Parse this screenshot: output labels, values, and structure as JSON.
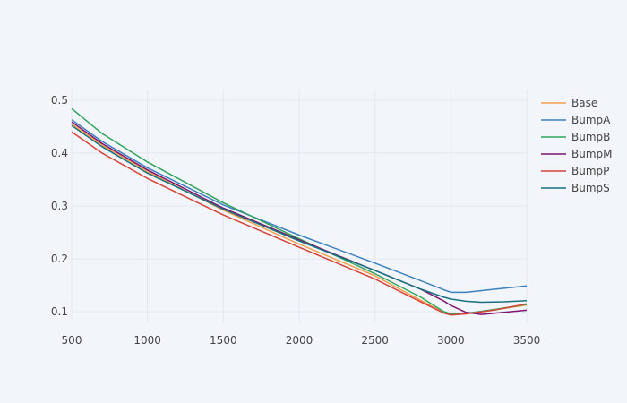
{
  "chart_data": {
    "type": "line",
    "title": "",
    "xlabel": "",
    "ylabel": "",
    "xlim": [
      500,
      3500
    ],
    "ylim": [
      0.08,
      0.52
    ],
    "x_ticks": [
      500,
      1000,
      1500,
      2000,
      2500,
      3000,
      3500
    ],
    "y_ticks": [
      0.1,
      0.2,
      0.3,
      0.4,
      0.5
    ],
    "grid": true,
    "legend_position": "top-right",
    "series": [
      {
        "name": "Base",
        "color": "#f2a04a",
        "points": [
          [
            500,
            0.455
          ],
          [
            700,
            0.415
          ],
          [
            1000,
            0.365
          ],
          [
            1500,
            0.292
          ],
          [
            2000,
            0.228
          ],
          [
            2500,
            0.168
          ],
          [
            2800,
            0.122
          ],
          [
            2950,
            0.099
          ],
          [
            3000,
            0.095
          ],
          [
            3100,
            0.097
          ],
          [
            3300,
            0.104
          ],
          [
            3500,
            0.113
          ]
        ]
      },
      {
        "name": "BumpA",
        "color": "#3d82bf",
        "points": [
          [
            500,
            0.463
          ],
          [
            700,
            0.422
          ],
          [
            1000,
            0.372
          ],
          [
            1500,
            0.302
          ],
          [
            2000,
            0.245
          ],
          [
            2500,
            0.192
          ],
          [
            2800,
            0.159
          ],
          [
            2950,
            0.142
          ],
          [
            3000,
            0.137
          ],
          [
            3100,
            0.137
          ],
          [
            3300,
            0.143
          ],
          [
            3500,
            0.149
          ]
        ]
      },
      {
        "name": "BumpB",
        "color": "#33a35c",
        "points": [
          [
            500,
            0.484
          ],
          [
            700,
            0.437
          ],
          [
            1000,
            0.383
          ],
          [
            1500,
            0.306
          ],
          [
            2000,
            0.238
          ],
          [
            2500,
            0.172
          ],
          [
            2800,
            0.128
          ],
          [
            2950,
            0.101
          ],
          [
            3000,
            0.096
          ],
          [
            3100,
            0.097
          ],
          [
            3300,
            0.105
          ],
          [
            3500,
            0.114
          ]
        ]
      },
      {
        "name": "BumpM",
        "color": "#80146e",
        "points": [
          [
            500,
            0.459
          ],
          [
            700,
            0.418
          ],
          [
            1000,
            0.368
          ],
          [
            1500,
            0.296
          ],
          [
            2000,
            0.236
          ],
          [
            2500,
            0.178
          ],
          [
            2800,
            0.143
          ],
          [
            2950,
            0.121
          ],
          [
            3000,
            0.112
          ],
          [
            3100,
            0.099
          ],
          [
            3200,
            0.095
          ],
          [
            3350,
            0.099
          ],
          [
            3500,
            0.103
          ]
        ]
      },
      {
        "name": "BumpP",
        "color": "#d6433a",
        "points": [
          [
            500,
            0.44
          ],
          [
            700,
            0.4
          ],
          [
            1000,
            0.352
          ],
          [
            1500,
            0.283
          ],
          [
            2000,
            0.222
          ],
          [
            2500,
            0.162
          ],
          [
            2800,
            0.119
          ],
          [
            2950,
            0.098
          ],
          [
            3000,
            0.094
          ],
          [
            3100,
            0.096
          ],
          [
            3300,
            0.104
          ],
          [
            3500,
            0.115
          ]
        ]
      },
      {
        "name": "BumpS",
        "color": "#15727f",
        "points": [
          [
            500,
            0.452
          ],
          [
            700,
            0.412
          ],
          [
            1000,
            0.362
          ],
          [
            1500,
            0.294
          ],
          [
            2000,
            0.234
          ],
          [
            2500,
            0.178
          ],
          [
            2800,
            0.143
          ],
          [
            2950,
            0.128
          ],
          [
            3000,
            0.124
          ],
          [
            3100,
            0.12
          ],
          [
            3200,
            0.118
          ],
          [
            3350,
            0.119
          ],
          [
            3500,
            0.121
          ]
        ]
      }
    ]
  }
}
